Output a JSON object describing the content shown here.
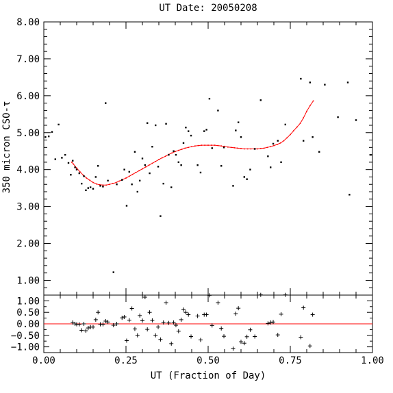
{
  "chart_data": [
    {
      "type": "scatter",
      "panel": "main",
      "title": "UT Date: 20050208",
      "ylabel": "350 micron CSO-τ",
      "xlim": [
        0.0,
        1.0
      ],
      "ylim": [
        0.6,
        8.0
      ],
      "yticks": [
        1.0,
        2.0,
        3.0,
        4.0,
        5.0,
        6.0,
        7.0,
        8.0
      ],
      "ytick_labels": [
        "1.00",
        "2.00",
        "3.00",
        "4.00",
        "5.00",
        "6.00",
        "7.00",
        "8.00"
      ],
      "grid": false,
      "series": [
        {
          "kind": "points",
          "color": "#000000",
          "x": [
            0.005,
            0.015,
            0.025,
            0.035,
            0.045,
            0.055,
            0.065,
            0.075,
            0.082,
            0.088,
            0.095,
            0.1,
            0.108,
            0.115,
            0.122,
            0.128,
            0.135,
            0.142,
            0.15,
            0.158,
            0.165,
            0.172,
            0.18,
            0.188,
            0.195,
            0.212,
            0.222,
            0.238,
            0.245,
            0.252,
            0.26,
            0.268,
            0.277,
            0.285,
            0.292,
            0.3,
            0.308,
            0.315,
            0.322,
            0.33,
            0.34,
            0.348,
            0.355,
            0.364,
            0.372,
            0.38,
            0.388,
            0.395,
            0.402,
            0.41,
            0.418,
            0.425,
            0.432,
            0.44,
            0.448,
            0.468,
            0.477,
            0.488,
            0.495,
            0.504,
            0.512,
            0.53,
            0.54,
            0.548,
            0.576,
            0.584,
            0.592,
            0.6,
            0.61,
            0.618,
            0.628,
            0.642,
            0.66,
            0.682,
            0.69,
            0.698,
            0.712,
            0.722,
            0.735,
            0.782,
            0.79,
            0.81,
            0.818,
            0.838,
            0.855,
            0.895,
            0.925,
            0.93,
            0.95,
            0.995
          ],
          "y": [
            4.88,
            4.9,
            5.02,
            4.28,
            5.22,
            4.32,
            4.4,
            4.18,
            3.86,
            4.24,
            4.06,
            4.0,
            3.9,
            3.62,
            3.82,
            3.44,
            3.5,
            3.52,
            3.48,
            3.8,
            4.1,
            3.56,
            3.54,
            5.8,
            3.7,
            1.22,
            3.6,
            3.72,
            4.0,
            3.02,
            3.94,
            3.6,
            4.48,
            3.4,
            3.7,
            4.3,
            4.12,
            5.26,
            3.9,
            4.62,
            5.2,
            4.08,
            2.74,
            3.62,
            5.24,
            4.4,
            3.52,
            4.5,
            4.4,
            4.2,
            4.12,
            4.72,
            5.14,
            5.04,
            4.92,
            4.12,
            3.92,
            5.04,
            5.08,
            5.92,
            4.58,
            5.6,
            4.1,
            4.6,
            3.56,
            5.06,
            5.28,
            4.88,
            3.8,
            3.74,
            4.0,
            4.56,
            5.88,
            4.36,
            4.06,
            4.7,
            4.78,
            4.2,
            5.22,
            6.46,
            4.78,
            6.36,
            4.88,
            4.48,
            6.3,
            5.42,
            6.36,
            3.32,
            5.34,
            4.4
          ]
        },
        {
          "kind": "fit",
          "color": "#ff0000",
          "x": [
            0.085,
            0.09,
            0.1,
            0.11,
            0.12,
            0.13,
            0.14,
            0.15,
            0.16,
            0.17,
            0.18,
            0.19,
            0.2,
            0.21,
            0.22,
            0.23,
            0.24,
            0.25,
            0.26,
            0.27,
            0.28,
            0.29,
            0.3,
            0.31,
            0.32,
            0.33,
            0.34,
            0.35,
            0.36,
            0.37,
            0.38,
            0.39,
            0.4,
            0.41,
            0.42,
            0.43,
            0.44,
            0.45,
            0.46,
            0.47,
            0.48,
            0.49,
            0.5,
            0.51,
            0.52,
            0.53,
            0.54,
            0.55,
            0.56,
            0.57,
            0.58,
            0.59,
            0.6,
            0.61,
            0.62,
            0.63,
            0.64,
            0.65,
            0.66,
            0.67,
            0.68,
            0.69,
            0.7,
            0.71,
            0.72,
            0.73,
            0.74,
            0.75,
            0.76,
            0.77,
            0.78,
            0.79,
            0.8,
            0.81,
            0.82
          ],
          "y": [
            4.2,
            4.15,
            4.04,
            3.94,
            3.85,
            3.77,
            3.71,
            3.65,
            3.61,
            3.59,
            3.58,
            3.58,
            3.6,
            3.62,
            3.65,
            3.69,
            3.73,
            3.77,
            3.82,
            3.87,
            3.92,
            3.97,
            4.02,
            4.07,
            4.12,
            4.17,
            4.22,
            4.27,
            4.32,
            4.36,
            4.41,
            4.45,
            4.49,
            4.52,
            4.55,
            4.58,
            4.6,
            4.62,
            4.64,
            4.65,
            4.66,
            4.66,
            4.66,
            4.66,
            4.66,
            4.65,
            4.64,
            4.63,
            4.61,
            4.6,
            4.59,
            4.58,
            4.57,
            4.56,
            4.56,
            4.56,
            4.56,
            4.56,
            4.57,
            4.58,
            4.6,
            4.62,
            4.65,
            4.68,
            4.72,
            4.78,
            4.86,
            4.95,
            5.05,
            5.15,
            5.25,
            5.4,
            5.58,
            5.73,
            5.86
          ]
        }
      ]
    },
    {
      "type": "scatter",
      "panel": "residuals",
      "xlabel": "UT (Fraction of Day)",
      "xlim": [
        0.0,
        1.0
      ],
      "ylim": [
        -1.25,
        1.25
      ],
      "yticks": [
        -1.0,
        -0.5,
        0.0,
        0.5,
        1.0
      ],
      "ytick_labels": [
        "−1.00",
        "−0.50",
        "0.00",
        "0.50",
        "1.00"
      ],
      "xticks": [
        0.0,
        0.25,
        0.5,
        0.75,
        1.0
      ],
      "xtick_labels": [
        "0.00",
        "0.25",
        "0.50",
        "0.75",
        "1.00"
      ],
      "zero_line_color": "#ff0000",
      "series": [
        {
          "kind": "residuals",
          "color": "#000000",
          "x": [
            0.088,
            0.095,
            0.1,
            0.108,
            0.115,
            0.122,
            0.128,
            0.135,
            0.142,
            0.15,
            0.158,
            0.165,
            0.172,
            0.18,
            0.188,
            0.195,
            0.212,
            0.222,
            0.238,
            0.245,
            0.252,
            0.26,
            0.268,
            0.277,
            0.285,
            0.292,
            0.3,
            0.308,
            0.315,
            0.322,
            0.33,
            0.34,
            0.348,
            0.355,
            0.364,
            0.372,
            0.38,
            0.388,
            0.395,
            0.402,
            0.41,
            0.418,
            0.425,
            0.432,
            0.44,
            0.448,
            0.468,
            0.477,
            0.488,
            0.495,
            0.504,
            0.512,
            0.53,
            0.54,
            0.548,
            0.576,
            0.584,
            0.592,
            0.6,
            0.61,
            0.618,
            0.628,
            0.642,
            0.66,
            0.682,
            0.69,
            0.698,
            0.712,
            0.722,
            0.735,
            0.782,
            0.79,
            0.81,
            0.818
          ],
          "y": [
            0.06,
            0.0,
            -0.02,
            -0.02,
            -0.28,
            0.0,
            -0.3,
            -0.18,
            -0.14,
            -0.14,
            0.18,
            0.5,
            -0.02,
            -0.02,
            0.12,
            0.08,
            -0.06,
            0.0,
            0.26,
            0.3,
            -0.73,
            0.16,
            0.67,
            -0.22,
            -0.5,
            0.36,
            0.14,
            1.16,
            -0.24,
            0.5,
            0.15,
            -0.5,
            -0.14,
            -0.68,
            0.06,
            0.92,
            0.04,
            -0.86,
            0.06,
            -0.06,
            -0.32,
            0.18,
            0.62,
            0.5,
            0.4,
            -0.55,
            0.34,
            -0.7,
            0.4,
            0.4,
            1.24,
            -0.07,
            0.92,
            -0.2,
            -0.54,
            -1.08,
            0.44,
            0.68,
            -0.78,
            -0.84,
            -0.56,
            -0.26,
            -0.55,
            1.26,
            0.02,
            0.06,
            0.08,
            -0.48,
            0.42,
            1.26,
            -0.58,
            0.7,
            -0.96,
            0.4
          ]
        }
      ]
    }
  ]
}
